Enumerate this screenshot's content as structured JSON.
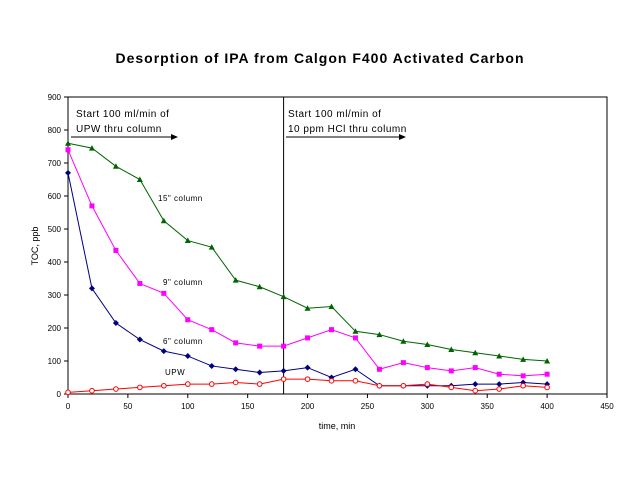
{
  "chart_data": {
    "type": "line",
    "title": "Desorption of IPA from Calgon F400 Activated Carbon",
    "xlabel": "time, min",
    "ylabel": "TOC, ppb",
    "xlim": [
      0,
      450
    ],
    "ylim": [
      0,
      900
    ],
    "xticks": [
      "0",
      "50",
      "100",
      "150",
      "200",
      "250",
      "300",
      "350",
      "400",
      "450"
    ],
    "yticks": [
      "0",
      "100",
      "200",
      "300",
      "400",
      "500",
      "600",
      "700",
      "800",
      "900"
    ],
    "grid": false,
    "legend": "none",
    "annotations": {
      "first_phase_line1": "Start 100 ml/min of",
      "first_phase_line2": "UPW thru column",
      "second_phase_line1": "Start 100 ml/min of",
      "second_phase_line2": "10 ppm HCl thru column",
      "divider_time": 180
    },
    "series": [
      {
        "name": "15\" column",
        "color": "#006400",
        "marker": "triangle",
        "x": [
          0,
          20,
          40,
          60,
          80,
          100,
          120,
          140,
          160,
          180,
          200,
          220,
          240,
          260,
          280,
          300,
          320,
          340,
          360,
          380,
          400
        ],
        "y": [
          760,
          745,
          690,
          650,
          525,
          465,
          445,
          345,
          325,
          295,
          260,
          265,
          190,
          180,
          160,
          150,
          135,
          125,
          115,
          105,
          100
        ]
      },
      {
        "name": "9\" column",
        "color": "#ff00ff",
        "marker": "square",
        "x": [
          0,
          20,
          40,
          60,
          80,
          100,
          120,
          140,
          160,
          180,
          200,
          220,
          240,
          260,
          280,
          300,
          320,
          340,
          360,
          380,
          400
        ],
        "y": [
          740,
          570,
          435,
          335,
          305,
          225,
          195,
          155,
          145,
          145,
          170,
          195,
          170,
          75,
          95,
          80,
          70,
          80,
          60,
          55,
          60
        ]
      },
      {
        "name": "6\" column",
        "color": "#000080",
        "marker": "diamond",
        "x": [
          0,
          20,
          40,
          60,
          80,
          100,
          120,
          140,
          160,
          180,
          200,
          220,
          240,
          260,
          280,
          300,
          320,
          340,
          360,
          380,
          400
        ],
        "y": [
          670,
          320,
          215,
          165,
          130,
          115,
          85,
          75,
          65,
          70,
          80,
          50,
          75,
          25,
          25,
          25,
          25,
          30,
          30,
          35,
          30
        ]
      },
      {
        "name": "UPW",
        "color": "#ff0000",
        "marker": "circle",
        "x": [
          0,
          20,
          40,
          60,
          80,
          100,
          120,
          140,
          160,
          180,
          200,
          220,
          240,
          260,
          280,
          300,
          320,
          340,
          360,
          380,
          400
        ],
        "y": [
          5,
          10,
          15,
          20,
          25,
          30,
          30,
          35,
          30,
          45,
          45,
          40,
          40,
          25,
          25,
          30,
          20,
          10,
          15,
          25,
          20
        ]
      }
    ]
  }
}
